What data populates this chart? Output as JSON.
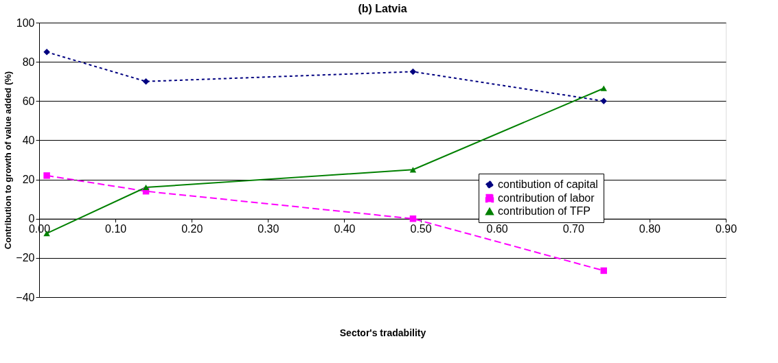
{
  "chart_data": {
    "type": "line",
    "title": "(b) Latvia",
    "xlabel": "Sector's tradability",
    "ylabel": "Contribution to growth of value added (%)",
    "series": [
      {
        "name": "contibution of capital",
        "color": "#000080",
        "marker": "diamond",
        "line_style": "dotted",
        "x": [
          0.01,
          0.14,
          0.49,
          0.74
        ],
        "values": [
          85,
          70,
          75,
          60
        ]
      },
      {
        "name": "contribution of labor",
        "color": "#ff00ff",
        "marker": "square",
        "line_style": "dashed",
        "x": [
          0.01,
          0.14,
          0.49,
          0.74
        ],
        "values": [
          22,
          14,
          0,
          -26.5
        ]
      },
      {
        "name": "contribution of TFP",
        "color": "#008000",
        "marker": "triangle",
        "line_style": "solid",
        "x": [
          0.01,
          0.14,
          0.49,
          0.74
        ],
        "values": [
          -7.5,
          16,
          25,
          66.5
        ]
      }
    ],
    "xlim": [
      0,
      0.9
    ],
    "ylim": [
      -40,
      100
    ],
    "xticks": [
      {
        "value": 0,
        "label": "0.00"
      },
      {
        "value": 0.1,
        "label": "0.10"
      },
      {
        "value": 0.2,
        "label": "0.20"
      },
      {
        "value": 0.3,
        "label": "0.30"
      },
      {
        "value": 0.4,
        "label": "0.40"
      },
      {
        "value": 0.5,
        "label": "0.50"
      },
      {
        "value": 0.6,
        "label": "0.60"
      },
      {
        "value": 0.7,
        "label": "0.70"
      },
      {
        "value": 0.8,
        "label": "0.80"
      },
      {
        "value": 0.9,
        "label": "0.90"
      }
    ],
    "yticks": [
      -40,
      -20,
      0,
      20,
      40,
      60,
      80,
      100
    ],
    "grid": "y",
    "legend": "right"
  }
}
